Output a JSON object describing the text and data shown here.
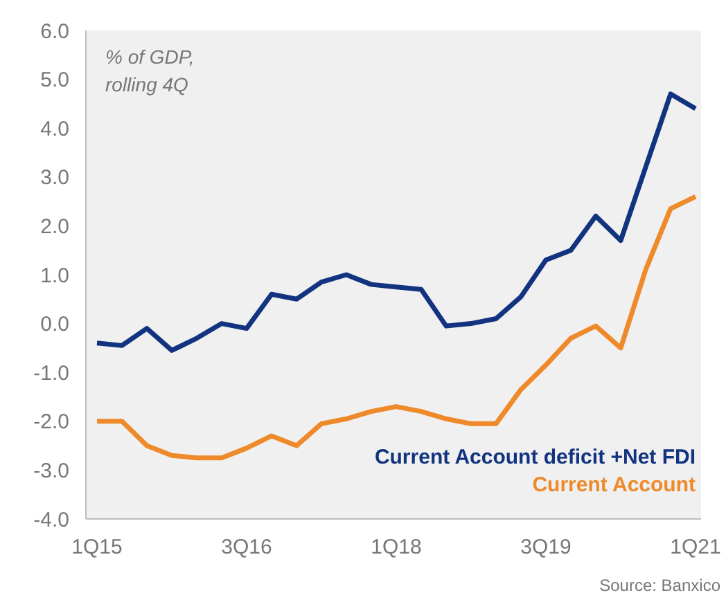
{
  "chart_data": {
    "type": "line",
    "categories": [
      "1Q15",
      null,
      null,
      null,
      null,
      null,
      "3Q16",
      null,
      null,
      null,
      null,
      null,
      "1Q18",
      null,
      null,
      null,
      null,
      null,
      "3Q19",
      null,
      null,
      null,
      null,
      null,
      "1Q21"
    ],
    "series": [
      {
        "name": "Current Account deficit +Net FDI",
        "color": "#12337f",
        "values": [
          -0.4,
          -0.45,
          -0.1,
          -0.55,
          -0.3,
          0.0,
          -0.1,
          0.6,
          0.5,
          0.85,
          1.0,
          0.8,
          0.75,
          0.7,
          -0.05,
          0.0,
          0.1,
          0.55,
          1.3,
          1.5,
          2.2,
          1.7,
          3.2,
          4.7,
          4.4
        ]
      },
      {
        "name": "Current Account",
        "color": "#ee8a2a",
        "values": [
          -2.0,
          -2.0,
          -2.5,
          -2.7,
          -2.75,
          -2.75,
          -2.55,
          -2.3,
          -2.5,
          -2.05,
          -1.95,
          -1.8,
          -1.7,
          -1.8,
          -1.95,
          -2.05,
          -2.05,
          -1.35,
          -0.85,
          -0.3,
          -0.05,
          -0.5,
          1.1,
          2.35,
          2.6
        ]
      }
    ],
    "ylim": [
      -4,
      6
    ],
    "yticks": [
      {
        "value": 6,
        "label": "6.0"
      },
      {
        "value": 5,
        "label": "5.0"
      },
      {
        "value": 4,
        "label": "4.0"
      },
      {
        "value": 3,
        "label": "3.0"
      },
      {
        "value": 2,
        "label": "2.0"
      },
      {
        "value": 1,
        "label": "1.0"
      },
      {
        "value": 0,
        "label": "0.0"
      },
      {
        "value": -1,
        "label": "-1.0"
      },
      {
        "value": -2,
        "label": "-2.0"
      },
      {
        "value": -3,
        "label": "-3.0"
      },
      {
        "value": -4,
        "label": "-4.0"
      }
    ],
    "grid": false,
    "legend": "bottom right",
    "marker": "none",
    "line_style": "solid",
    "annotations": [
      "% of GDP,\nrolling 4Q",
      "Source: Banxico"
    ]
  }
}
